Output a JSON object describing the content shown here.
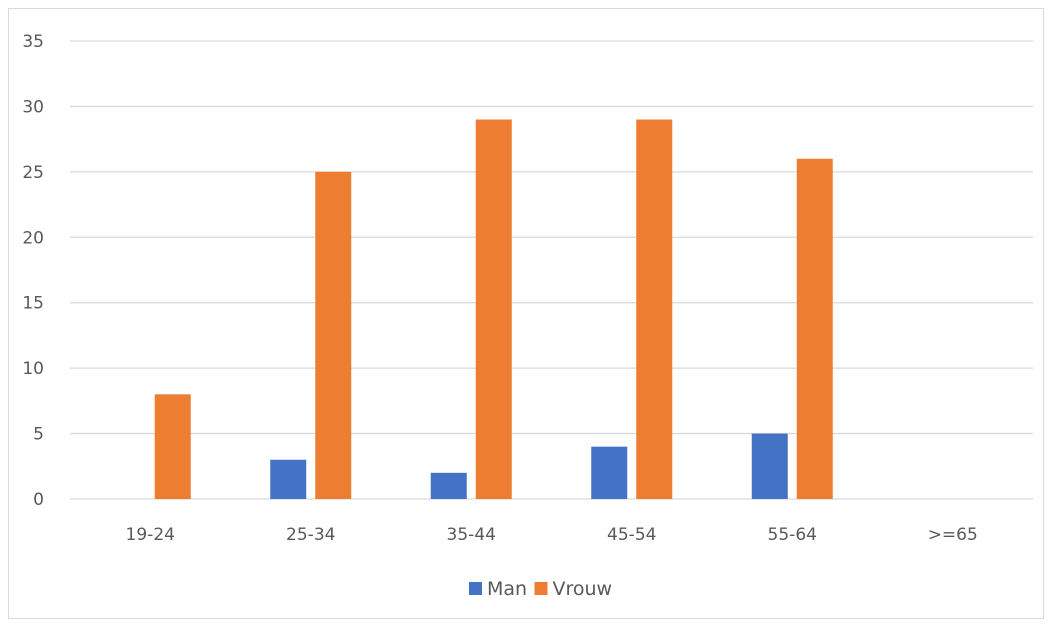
{
  "chart_data": {
    "type": "bar",
    "title": "",
    "xlabel": "",
    "ylabel": "",
    "categories": [
      "19-24",
      "25-34",
      "35-44",
      "45-54",
      "55-64",
      ">=65"
    ],
    "series": [
      {
        "name": "Man",
        "color": "#4472C4",
        "values": [
          0,
          3,
          2,
          4,
          5,
          0
        ]
      },
      {
        "name": "Vrouw",
        "color": "#ED7D31",
        "values": [
          8,
          25,
          29,
          29,
          26,
          0
        ]
      }
    ],
    "ylim": [
      0,
      35
    ],
    "yticks": [
      "0",
      "5",
      "10",
      "15",
      "20",
      "25",
      "30",
      "35"
    ],
    "grid": true,
    "legend_position": "bottom"
  }
}
